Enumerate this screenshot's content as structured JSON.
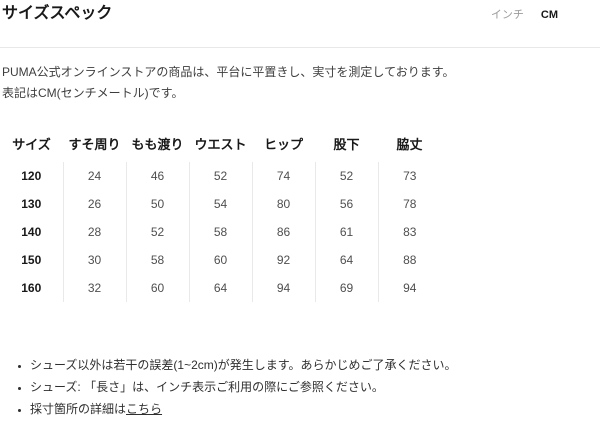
{
  "page": {
    "title": "サイズスペック"
  },
  "unit_toggle": {
    "inch_label": "インチ",
    "cm_label": "CM"
  },
  "intro": {
    "line1": "PUMA公式オンラインストアの商品は、平台に平置きし、実寸を測定しております。",
    "line2": "表記はCM(センチメートル)です。"
  },
  "size_table": {
    "columns": [
      "サイズ",
      "すそ周り",
      "もも渡り",
      "ウエスト",
      "ヒップ",
      "股下",
      "脇丈"
    ],
    "rows": [
      {
        "size": "120",
        "values": [
          "24",
          "46",
          "52",
          "74",
          "52",
          "73"
        ]
      },
      {
        "size": "130",
        "values": [
          "26",
          "50",
          "54",
          "80",
          "56",
          "78"
        ]
      },
      {
        "size": "140",
        "values": [
          "28",
          "52",
          "58",
          "86",
          "61",
          "83"
        ]
      },
      {
        "size": "150",
        "values": [
          "30",
          "58",
          "60",
          "92",
          "64",
          "88"
        ]
      },
      {
        "size": "160",
        "values": [
          "32",
          "60",
          "64",
          "94",
          "69",
          "94"
        ]
      }
    ]
  },
  "notes": {
    "item1": "シューズ以外は若干の誤差(1~2cm)が発生します。あらかじめご了承ください。",
    "item2": "シューズ: 「長さ」は、インチ表示ご利用の際にご参照ください。",
    "item3_text": "採寸箇所の詳細は",
    "item3_link": "こちら"
  },
  "colors": {
    "text_primary": "#191919",
    "text_muted": "#9b9b9b",
    "text_value": "#4f4f4f",
    "divider": "#e8e8e8"
  }
}
